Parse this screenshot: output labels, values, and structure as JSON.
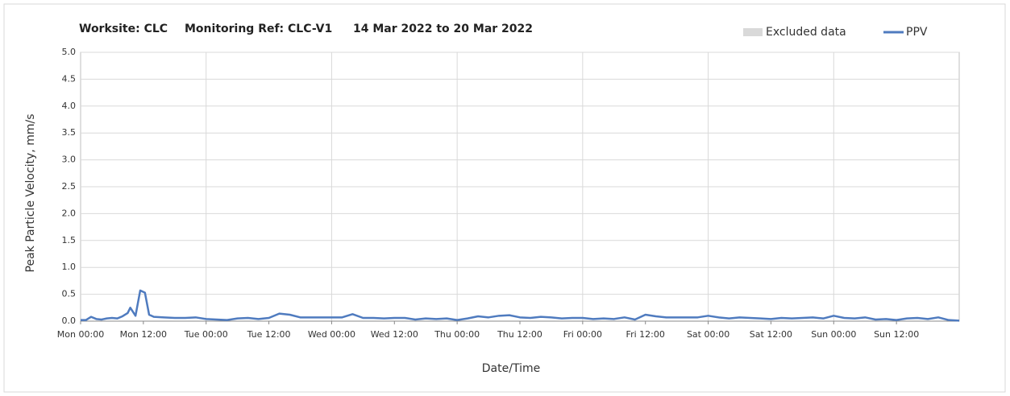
{
  "chart_data": {
    "type": "line",
    "title": [
      "Worksite: CLC",
      "Monitoring Ref: CLC-V1",
      "14 Mar 2022 to 20 Mar 2022"
    ],
    "x_label": "Date/Time",
    "y_label": "Peak Particle Velocity, mm/s",
    "excluded_data": {
      "name": "Excluded data",
      "color": "#d9d9d9"
    },
    "x": [
      0,
      1,
      2,
      3,
      4,
      5,
      6,
      7,
      8,
      9,
      9.5,
      10.5,
      11.4,
      12.3,
      13.1,
      14,
      16,
      18,
      20,
      22,
      24,
      26,
      28,
      30,
      32,
      34,
      36,
      38,
      40,
      42,
      44,
      46,
      48,
      50,
      52,
      54,
      56,
      58,
      60,
      62,
      64,
      66,
      68,
      70,
      72,
      74,
      76,
      78,
      80,
      82,
      84,
      86,
      88,
      90,
      92,
      94,
      96,
      98,
      100,
      102,
      104,
      106,
      108,
      110,
      112,
      114,
      116,
      118,
      120,
      122,
      124,
      126,
      128,
      130,
      132,
      134,
      136,
      138,
      140,
      142,
      144,
      146,
      148,
      150,
      152,
      154,
      156,
      158,
      160,
      162,
      164,
      166,
      168
    ],
    "series": [
      {
        "name": "PPV",
        "color": "#4f7bbf",
        "values": [
          0.02,
          0.02,
          0.08,
          0.04,
          0.03,
          0.05,
          0.06,
          0.05,
          0.09,
          0.15,
          0.25,
          0.1,
          0.57,
          0.53,
          0.12,
          0.08,
          0.07,
          0.06,
          0.06,
          0.07,
          0.04,
          0.03,
          0.02,
          0.05,
          0.06,
          0.04,
          0.06,
          0.14,
          0.12,
          0.07,
          0.07,
          0.07,
          0.07,
          0.07,
          0.13,
          0.06,
          0.06,
          0.05,
          0.06,
          0.06,
          0.03,
          0.05,
          0.04,
          0.05,
          0.02,
          0.05,
          0.09,
          0.07,
          0.1,
          0.11,
          0.07,
          0.06,
          0.08,
          0.07,
          0.05,
          0.06,
          0.06,
          0.04,
          0.05,
          0.04,
          0.07,
          0.03,
          0.12,
          0.09,
          0.07,
          0.07,
          0.07,
          0.07,
          0.1,
          0.07,
          0.05,
          0.07,
          0.06,
          0.05,
          0.04,
          0.06,
          0.05,
          0.06,
          0.07,
          0.05,
          0.1,
          0.06,
          0.05,
          0.07,
          0.03,
          0.04,
          0.02,
          0.05,
          0.06,
          0.04,
          0.07,
          0.02,
          0.01
        ]
      }
    ],
    "xlim": [
      0,
      168
    ],
    "xticks": [
      {
        "value": 0,
        "label": "Mon 00:00"
      },
      {
        "value": 12,
        "label": "Mon 12:00"
      },
      {
        "value": 24,
        "label": "Tue 00:00"
      },
      {
        "value": 36,
        "label": "Tue 12:00"
      },
      {
        "value": 48,
        "label": "Wed 00:00"
      },
      {
        "value": 60,
        "label": "Wed 12:00"
      },
      {
        "value": 72,
        "label": "Thu 00:00"
      },
      {
        "value": 84,
        "label": "Thu 12:00"
      },
      {
        "value": 96,
        "label": "Fri 00:00"
      },
      {
        "value": 108,
        "label": "Fri 12:00"
      },
      {
        "value": 120,
        "label": "Sat 00:00"
      },
      {
        "value": 132,
        "label": "Sat 12:00"
      },
      {
        "value": 144,
        "label": "Sun 00:00"
      },
      {
        "value": 156,
        "label": "Sun 12:00"
      }
    ],
    "x_grid": [
      24,
      48,
      72,
      96,
      120,
      144
    ],
    "ylim": [
      0,
      5
    ],
    "yticks": [
      {
        "value": 0,
        "label": "0.0"
      },
      {
        "value": 0.5,
        "label": "0.5"
      },
      {
        "value": 1,
        "label": "1.0"
      },
      {
        "value": 1.5,
        "label": "1.5"
      },
      {
        "value": 2,
        "label": "2.0"
      },
      {
        "value": 2.5,
        "label": "2.5"
      },
      {
        "value": 3,
        "label": "3.0"
      },
      {
        "value": 3.5,
        "label": "3.5"
      },
      {
        "value": 4,
        "label": "4.0"
      },
      {
        "value": 4.5,
        "label": "4.5"
      },
      {
        "value": 5,
        "label": "5.0"
      }
    ],
    "grid": true
  }
}
